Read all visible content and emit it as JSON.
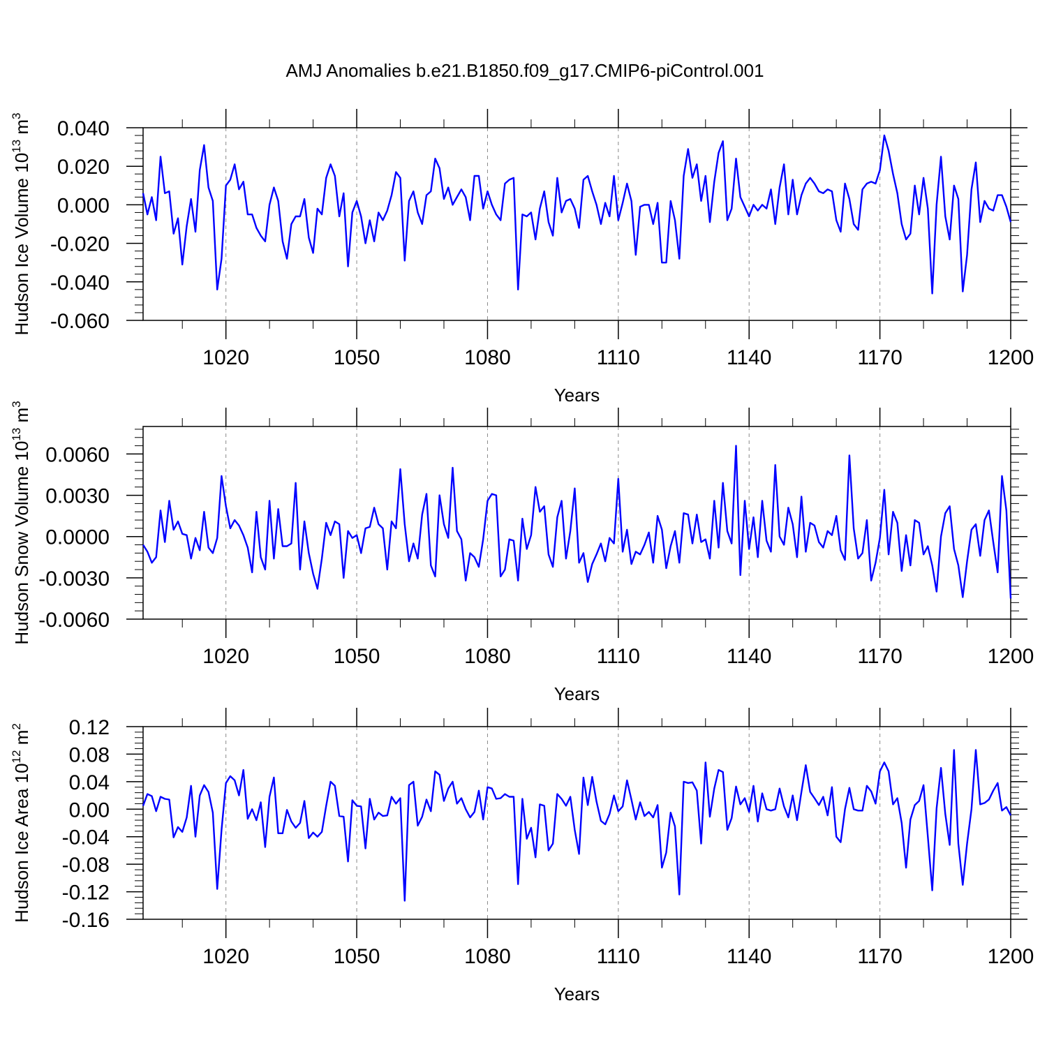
{
  "title": "AMJ Anomalies b.e21.B1850.f09_g17.CMIP6-piControl.001",
  "colors": {
    "line": "#0000ff",
    "axes": "#000000",
    "grid": "#888888"
  },
  "chart_data": [
    {
      "type": "line",
      "ylabel": {
        "text": "Hudson Ice Volume 10",
        "sup": "13",
        "unit": " m",
        "unit_sup": "3"
      },
      "xlabel": "Years",
      "xlim": [
        1001,
        1200
      ],
      "ylim": [
        -0.06,
        0.04
      ],
      "xticks": [
        1020,
        1050,
        1080,
        1110,
        1140,
        1170,
        1200
      ],
      "xtick_labels": [
        "1020",
        "1050",
        "1080",
        "1110",
        "1140",
        "1170",
        "1200"
      ],
      "yticks": [
        -0.06,
        -0.04,
        -0.02,
        0.0,
        0.02,
        0.04
      ],
      "ytick_labels": [
        "-0.060",
        "-0.040",
        "-0.020",
        "0.000",
        "0.020",
        "0.040"
      ],
      "grid": "vertical dashed at x ticks",
      "series": [
        {
          "x_start": 1001,
          "x_step": 1,
          "values": [
            0.006,
            -0.005,
            0.004,
            -0.008,
            0.025,
            0.006,
            0.007,
            -0.015,
            -0.007,
            -0.031,
            -0.011,
            0.003,
            -0.014,
            0.018,
            0.031,
            0.009,
            0.002,
            -0.044,
            -0.028,
            0.01,
            0.013,
            0.021,
            0.008,
            0.012,
            -0.005,
            -0.005,
            -0.012,
            -0.016,
            -0.019,
            0.0,
            0.009,
            0.002,
            -0.019,
            -0.028,
            -0.01,
            -0.006,
            -0.006,
            0.003,
            -0.017,
            -0.025,
            -0.002,
            -0.005,
            0.014,
            0.021,
            0.015,
            -0.006,
            0.006,
            -0.032,
            -0.004,
            0.002,
            -0.006,
            -0.02,
            -0.008,
            -0.019,
            -0.004,
            -0.008,
            -0.003,
            0.005,
            0.017,
            0.014,
            -0.029,
            0.002,
            0.007,
            -0.004,
            -0.01,
            0.005,
            0.007,
            0.024,
            0.019,
            0.003,
            0.009,
            0.0,
            0.004,
            0.008,
            0.004,
            -0.008,
            0.015,
            0.015,
            -0.002,
            0.007,
            0.0,
            -0.005,
            -0.008,
            0.011,
            0.013,
            0.014,
            -0.044,
            -0.005,
            -0.006,
            -0.004,
            -0.018,
            -0.002,
            0.007,
            -0.009,
            -0.016,
            0.014,
            -0.004,
            0.002,
            0.003,
            -0.002,
            -0.012,
            0.013,
            0.015,
            0.007,
            0.0,
            -0.01,
            0.001,
            -0.006,
            0.015,
            -0.008,
            0.001,
            0.011,
            0.002,
            -0.026,
            -0.001,
            0.0,
            0.0,
            -0.01,
            0.001,
            -0.03,
            -0.03,
            0.002,
            -0.008,
            -0.028,
            0.015,
            0.029,
            0.014,
            0.021,
            0.002,
            0.015,
            -0.009,
            0.012,
            0.027,
            0.033,
            -0.008,
            -0.002,
            0.024,
            0.004,
            -0.001,
            -0.006,
            0.0,
            -0.003,
            0.0,
            -0.002,
            0.008,
            -0.01,
            0.009,
            0.021,
            -0.005,
            0.013,
            -0.005,
            0.005,
            0.011,
            0.014,
            0.011,
            0.007,
            0.006,
            0.008,
            0.007,
            -0.008,
            -0.014,
            0.011,
            0.003,
            -0.01,
            -0.013,
            0.008,
            0.011,
            0.012,
            0.011,
            0.018,
            0.036,
            0.028,
            0.016,
            0.006,
            -0.01,
            -0.018,
            -0.015,
            0.01,
            -0.005,
            0.014,
            -0.002,
            -0.046,
            0.0,
            0.025,
            -0.006,
            -0.018,
            0.01,
            0.003,
            -0.045,
            -0.026,
            0.008,
            0.022,
            -0.009,
            0.002,
            -0.002,
            -0.003,
            0.005,
            0.005,
            -0.001,
            -0.009
          ]
        }
      ]
    },
    {
      "type": "line",
      "ylabel": {
        "text": "Hudson Snow Volume 10",
        "sup": "13",
        "unit": " m",
        "unit_sup": "3"
      },
      "xlabel": "Years",
      "xlim": [
        1001,
        1200
      ],
      "ylim": [
        -0.006,
        0.008
      ],
      "xticks": [
        1020,
        1050,
        1080,
        1110,
        1140,
        1170,
        1200
      ],
      "xtick_labels": [
        "1020",
        "1050",
        "1080",
        "1110",
        "1140",
        "1170",
        "1200"
      ],
      "yticks": [
        -0.006,
        -0.003,
        0.0,
        0.003,
        0.006
      ],
      "ytick_labels": [
        "-0.0060",
        "-0.0030",
        "0.0000",
        "0.0030",
        "0.0060"
      ],
      "grid": "vertical dashed at x ticks",
      "series": [
        {
          "x_start": 1001,
          "x_step": 1,
          "values": [
            -0.0006,
            -0.0011,
            -0.0019,
            -0.0015,
            0.0019,
            -0.0004,
            0.0026,
            0.0005,
            0.0011,
            0.0002,
            0.0001,
            -0.0016,
            -0.0001,
            -0.001,
            0.0018,
            -0.0008,
            -0.0012,
            -0.0001,
            0.0044,
            0.0022,
            0.0006,
            0.0012,
            0.0008,
            0.0001,
            -0.0008,
            -0.0026,
            0.0018,
            -0.0015,
            -0.0024,
            0.0026,
            -0.0016,
            0.002,
            -0.0007,
            -0.0007,
            -0.0005,
            0.0039,
            -0.0024,
            0.0011,
            -0.0012,
            -0.0027,
            -0.0038,
            -0.0016,
            0.001,
            0.0001,
            0.0011,
            0.0009,
            -0.003,
            0.0004,
            -0.0001,
            0.0001,
            -0.0012,
            0.0006,
            0.0007,
            0.0021,
            0.0009,
            0.0006,
            -0.0024,
            0.0011,
            0.0006,
            0.0049,
            0.0009,
            -0.0018,
            -0.0005,
            -0.0016,
            0.0016,
            0.0031,
            -0.0021,
            -0.0029,
            0.003,
            0.0009,
            -0.0001,
            0.005,
            0.0004,
            -0.0002,
            -0.0032,
            -0.0012,
            -0.0015,
            -0.0022,
            -0.0002,
            0.0026,
            0.0031,
            0.003,
            -0.0029,
            -0.0024,
            -0.0002,
            -0.0003,
            -0.0032,
            0.0013,
            -0.0009,
            0.0001,
            0.0036,
            0.0018,
            0.0022,
            -0.0013,
            -0.0022,
            0.0014,
            0.0026,
            -0.0016,
            0.0004,
            0.0035,
            -0.0019,
            -0.0012,
            -0.0033,
            -0.002,
            -0.0013,
            -0.0005,
            -0.0018,
            -0.0001,
            -0.0005,
            0.0042,
            -0.0011,
            0.0005,
            -0.002,
            -0.0011,
            -0.0013,
            -0.0006,
            0.0003,
            -0.0019,
            0.0015,
            0.0005,
            -0.0023,
            -0.0007,
            0.0004,
            -0.0019,
            0.0017,
            0.0016,
            -0.0005,
            0.0016,
            -0.0004,
            -0.0002,
            -0.0016,
            0.0026,
            -0.0008,
            0.0039,
            0.0004,
            -0.0005,
            0.0066,
            -0.0028,
            0.0026,
            -0.0009,
            0.0014,
            -0.0015,
            0.0026,
            -0.0003,
            -0.0011,
            0.0052,
            0.0,
            -0.0006,
            0.0021,
            0.0009,
            -0.0015,
            0.0029,
            -0.0011,
            0.001,
            0.0008,
            -0.0004,
            -0.0008,
            0.0004,
            0.0001,
            0.0015,
            -0.001,
            -0.0017,
            0.0059,
            0.0006,
            -0.0016,
            -0.0012,
            0.0012,
            -0.0032,
            -0.0019,
            -0.0001,
            0.0034,
            -0.0013,
            0.0018,
            0.001,
            -0.0025,
            0.0001,
            -0.0021,
            0.0012,
            0.001,
            -0.0013,
            -0.0007,
            -0.0021,
            -0.004,
            0.0,
            0.0017,
            0.0022,
            -0.0009,
            -0.0021,
            -0.0044,
            -0.0018,
            0.0005,
            0.0009,
            -0.0014,
            0.0012,
            0.0019,
            -0.0004,
            -0.0026,
            0.0044,
            0.0019,
            -0.0045
          ]
        }
      ]
    },
    {
      "type": "line",
      "ylabel": {
        "text": "Hudson Ice Area 10",
        "sup": "12",
        "unit": " m",
        "unit_sup": "2"
      },
      "xlabel": "Years",
      "xlim": [
        1001,
        1200
      ],
      "ylim": [
        -0.16,
        0.12
      ],
      "xticks": [
        1020,
        1050,
        1080,
        1110,
        1140,
        1170,
        1200
      ],
      "xtick_labels": [
        "1020",
        "1050",
        "1080",
        "1110",
        "1140",
        "1170",
        "1200"
      ],
      "yticks": [
        -0.16,
        -0.12,
        -0.08,
        -0.04,
        0.0,
        0.04,
        0.08,
        0.12
      ],
      "ytick_labels": [
        "-0.16",
        "-0.12",
        "-0.08",
        "-0.04",
        "0.00",
        "0.04",
        "0.08",
        "0.12"
      ],
      "grid": "vertical dashed at x ticks",
      "series": [
        {
          "x_start": 1001,
          "x_step": 1,
          "values": [
            0.005,
            0.022,
            0.019,
            -0.003,
            0.018,
            0.015,
            0.014,
            -0.041,
            -0.026,
            -0.033,
            -0.012,
            0.034,
            -0.04,
            0.02,
            0.035,
            0.025,
            -0.005,
            -0.116,
            -0.03,
            0.038,
            0.048,
            0.042,
            0.02,
            0.057,
            -0.014,
            0.0,
            -0.016,
            0.01,
            -0.055,
            0.018,
            0.046,
            -0.035,
            -0.035,
            -0.001,
            -0.018,
            -0.027,
            -0.02,
            0.012,
            -0.042,
            -0.034,
            -0.04,
            -0.033,
            0.005,
            0.04,
            0.034,
            -0.01,
            -0.011,
            -0.076,
            0.013,
            0.005,
            0.004,
            -0.057,
            0.015,
            -0.015,
            -0.005,
            -0.01,
            -0.009,
            0.018,
            0.008,
            0.016,
            -0.133,
            0.035,
            0.04,
            -0.024,
            -0.011,
            0.014,
            -0.003,
            0.055,
            0.05,
            0.012,
            0.03,
            0.04,
            0.008,
            0.016,
            0.0,
            -0.012,
            -0.004,
            0.027,
            -0.015,
            0.032,
            0.03,
            0.015,
            0.016,
            0.022,
            0.018,
            0.018,
            -0.109,
            0.015,
            -0.043,
            -0.027,
            -0.07,
            0.007,
            0.005,
            -0.06,
            -0.05,
            0.022,
            0.015,
            0.005,
            0.018,
            -0.03,
            -0.065,
            0.046,
            0.006,
            0.047,
            0.011,
            -0.017,
            -0.022,
            -0.007,
            0.02,
            -0.003,
            0.004,
            0.042,
            0.014,
            -0.015,
            0.01,
            -0.01,
            -0.004,
            -0.012,
            0.006,
            -0.085,
            -0.063,
            -0.005,
            -0.025,
            -0.124,
            0.04,
            0.038,
            0.039,
            0.027,
            -0.05,
            0.068,
            -0.011,
            0.03,
            0.057,
            0.054,
            -0.03,
            -0.013,
            0.033,
            0.007,
            0.016,
            -0.004,
            0.034,
            -0.018,
            0.023,
            0.0,
            -0.002,
            0.0,
            0.03,
            0.004,
            -0.012,
            0.02,
            -0.016,
            0.025,
            0.064,
            0.025,
            0.016,
            0.006,
            0.018,
            -0.009,
            0.032,
            -0.04,
            -0.048,
            0.0,
            0.031,
            0.0,
            -0.002,
            -0.002,
            0.034,
            0.026,
            0.008,
            0.055,
            0.068,
            0.055,
            0.007,
            0.016,
            -0.02,
            -0.085,
            -0.015,
            0.006,
            0.012,
            0.035,
            -0.04,
            -0.118,
            0.001,
            0.06,
            -0.007,
            -0.052,
            0.086,
            -0.05,
            -0.11,
            -0.05,
            0.0,
            0.086,
            0.007,
            0.009,
            0.014,
            0.027,
            0.038,
            -0.002,
            0.003,
            -0.009
          ]
        }
      ]
    }
  ]
}
